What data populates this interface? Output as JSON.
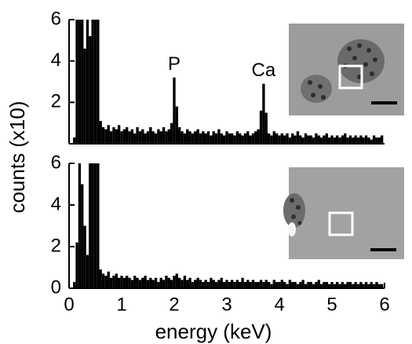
{
  "chart_data": [
    {
      "type": "bar",
      "color": "#000000",
      "ylabel": "counts (x10)",
      "xlim": [
        0,
        6
      ],
      "ylim": [
        0,
        6
      ],
      "yticks": [
        2,
        4,
        6
      ],
      "annotations": [
        {
          "text": "P",
          "x": 2.0,
          "y": 3.2
        },
        {
          "text": "Ca",
          "x": 3.7,
          "y": 2.9
        }
      ],
      "x": [
        0.1,
        0.15,
        0.2,
        0.25,
        0.3,
        0.35,
        0.4,
        0.45,
        0.5,
        0.55,
        0.6,
        0.65,
        0.7,
        0.75,
        0.8,
        0.85,
        0.9,
        0.95,
        1.0,
        1.05,
        1.1,
        1.15,
        1.2,
        1.25,
        1.3,
        1.35,
        1.4,
        1.45,
        1.5,
        1.55,
        1.6,
        1.65,
        1.7,
        1.75,
        1.8,
        1.85,
        1.9,
        1.95,
        2.0,
        2.05,
        2.1,
        2.15,
        2.2,
        2.25,
        2.3,
        2.35,
        2.4,
        2.45,
        2.5,
        2.55,
        2.6,
        2.65,
        2.7,
        2.75,
        2.8,
        2.85,
        2.9,
        2.95,
        3.0,
        3.05,
        3.1,
        3.15,
        3.2,
        3.25,
        3.3,
        3.35,
        3.4,
        3.45,
        3.5,
        3.55,
        3.6,
        3.65,
        3.7,
        3.75,
        3.8,
        3.85,
        3.9,
        3.95,
        4.0,
        4.05,
        4.1,
        4.15,
        4.2,
        4.25,
        4.3,
        4.35,
        4.4,
        4.45,
        4.5,
        4.55,
        4.6,
        4.65,
        4.7,
        4.75,
        4.8,
        4.85,
        4.9,
        4.95,
        5.0,
        5.05,
        5.1,
        5.15,
        5.2,
        5.25,
        5.3,
        5.35,
        5.4,
        5.45,
        5.5,
        5.55,
        5.6,
        5.65,
        5.7,
        5.75,
        5.8,
        5.85,
        5.9,
        5.95
      ],
      "values": [
        0.3,
        6,
        6,
        6,
        4.6,
        6,
        5.2,
        6,
        6,
        6,
        1.1,
        0.8,
        0.7,
        0.9,
        0.6,
        0.8,
        0.7,
        0.9,
        0.6,
        0.7,
        0.8,
        0.6,
        0.7,
        0.5,
        0.8,
        0.6,
        0.7,
        0.5,
        0.6,
        0.8,
        0.6,
        0.5,
        0.7,
        0.6,
        0.8,
        0.6,
        0.7,
        1.0,
        3.2,
        1.8,
        0.8,
        0.6,
        0.5,
        0.7,
        0.6,
        0.5,
        0.6,
        0.7,
        0.5,
        0.6,
        0.5,
        0.6,
        0.4,
        0.6,
        0.5,
        0.7,
        0.5,
        0.4,
        0.6,
        0.5,
        0.5,
        0.4,
        0.6,
        0.5,
        0.4,
        0.5,
        0.6,
        0.4,
        0.5,
        0.6,
        0.7,
        1.6,
        2.9,
        1.5,
        0.5,
        0.4,
        0.6,
        0.5,
        0.4,
        0.5,
        0.4,
        0.5,
        0.3,
        0.5,
        0.4,
        0.6,
        0.4,
        0.3,
        0.5,
        0.4,
        0.4,
        0.3,
        0.5,
        0.4,
        0.3,
        0.4,
        0.5,
        0.3,
        0.4,
        0.3,
        0.4,
        0.3,
        0.4,
        0.5,
        0.3,
        0.4,
        0.3,
        0.4,
        0.3,
        0.4,
        0.3,
        0.4,
        0.3,
        0.2,
        0.4,
        0.3,
        0.3,
        0.4
      ]
    },
    {
      "type": "bar",
      "color": "#000000",
      "xlabel": "energy (keV)",
      "xlim": [
        0,
        6
      ],
      "ylim": [
        0,
        6
      ],
      "yticks": [
        0,
        2,
        4,
        6
      ],
      "xticks": [
        0,
        1,
        2,
        3,
        4,
        5,
        6
      ],
      "x": [
        0.1,
        0.15,
        0.2,
        0.25,
        0.3,
        0.35,
        0.4,
        0.45,
        0.5,
        0.55,
        0.6,
        0.65,
        0.7,
        0.75,
        0.8,
        0.85,
        0.9,
        0.95,
        1.0,
        1.05,
        1.1,
        1.15,
        1.2,
        1.25,
        1.3,
        1.35,
        1.4,
        1.45,
        1.5,
        1.55,
        1.6,
        1.65,
        1.7,
        1.75,
        1.8,
        1.85,
        1.9,
        1.95,
        2.0,
        2.05,
        2.1,
        2.15,
        2.2,
        2.25,
        2.3,
        2.35,
        2.4,
        2.45,
        2.5,
        2.55,
        2.6,
        2.65,
        2.7,
        2.75,
        2.8,
        2.85,
        2.9,
        2.95,
        3.0,
        3.05,
        3.1,
        3.15,
        3.2,
        3.25,
        3.3,
        3.35,
        3.4,
        3.45,
        3.5,
        3.55,
        3.6,
        3.65,
        3.7,
        3.75,
        3.8,
        3.85,
        3.9,
        3.95,
        4.0,
        4.05,
        4.1,
        4.15,
        4.2,
        4.25,
        4.3,
        4.35,
        4.4,
        4.45,
        4.5,
        4.55,
        4.6,
        4.65,
        4.7,
        4.75,
        4.8,
        4.85,
        4.9,
        4.95,
        5.0,
        5.05,
        5.1,
        5.15,
        5.2,
        5.25,
        5.3,
        5.35,
        5.4,
        5.45,
        5.5,
        5.55,
        5.6,
        5.65,
        5.7,
        5.75,
        5.8,
        5.85,
        5.9,
        5.95
      ],
      "values": [
        0.3,
        2.2,
        6,
        5,
        3,
        1.6,
        6,
        6,
        6,
        6,
        0.9,
        0.7,
        0.6,
        0.8,
        0.5,
        0.6,
        0.7,
        0.5,
        0.6,
        0.5,
        0.6,
        0.5,
        0.4,
        0.6,
        0.5,
        0.4,
        0.5,
        0.6,
        0.4,
        0.5,
        0.4,
        0.5,
        0.3,
        0.5,
        0.4,
        0.6,
        0.5,
        0.4,
        0.6,
        0.7,
        0.5,
        0.4,
        0.6,
        0.4,
        0.5,
        0.3,
        0.4,
        0.5,
        0.4,
        0.3,
        0.4,
        0.3,
        0.5,
        0.4,
        0.3,
        0.4,
        0.5,
        0.3,
        0.4,
        0.3,
        0.4,
        0.3,
        0.4,
        0.3,
        0.5,
        0.3,
        0.4,
        0.3,
        0.4,
        0.3,
        0.3,
        0.4,
        0.3,
        0.4,
        0.3,
        0.2,
        0.4,
        0.3,
        0.3,
        0.4,
        0.3,
        0.2,
        0.4,
        0.3,
        0.3,
        0.2,
        0.3,
        0.4,
        0.2,
        0.3,
        0.3,
        0.2,
        0.3,
        0.4,
        0.2,
        0.3,
        0.3,
        0.2,
        0.3,
        0.2,
        0.3,
        0.2,
        0.3,
        0.2,
        0.3,
        0.3,
        0.2,
        0.3,
        0.2,
        0.3,
        0.2,
        0.3,
        0.2,
        0.3,
        0.2,
        0.3,
        0.2,
        0.2
      ]
    }
  ]
}
